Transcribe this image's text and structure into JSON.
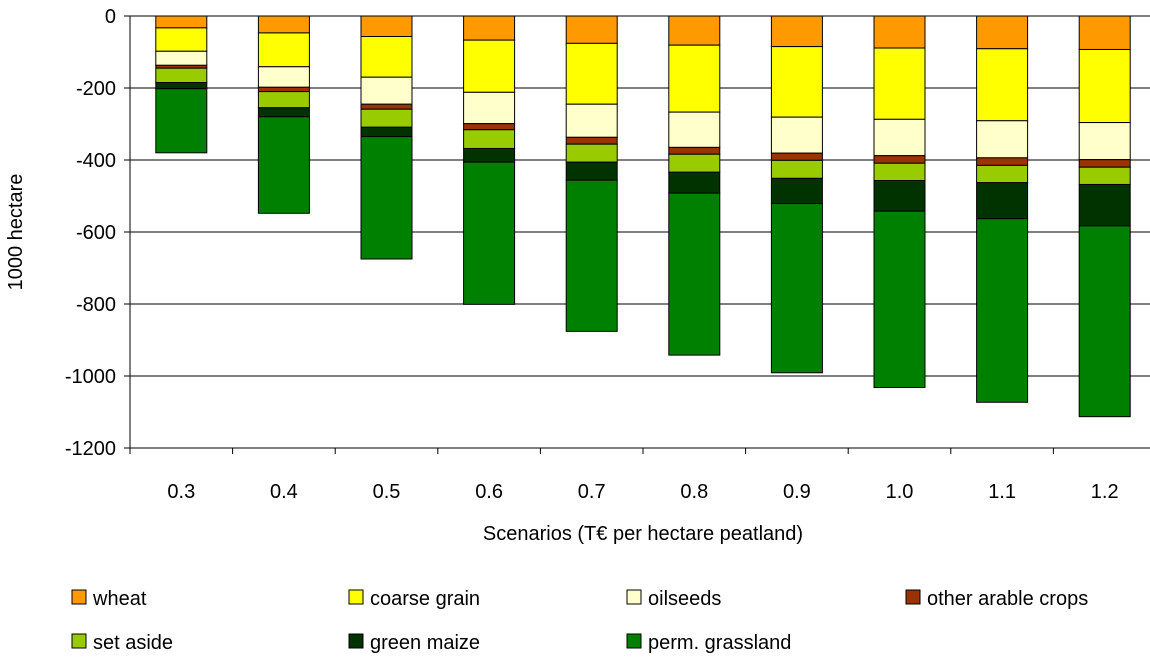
{
  "chart_data": {
    "type": "bar",
    "stacked": true,
    "title": "",
    "xlabel": "Scenarios (T€ per hectare peatland)",
    "ylabel": "1000 hectare",
    "ylim": [
      -1200,
      0
    ],
    "yticks": [
      "0",
      "-200",
      "-400",
      "-600",
      "-800",
      "-1000",
      "-1200"
    ],
    "ytick_values": [
      0,
      -200,
      -400,
      -600,
      -800,
      -1000,
      -1200
    ],
    "grid": true,
    "legend_position": "bottom",
    "categories": [
      "0.3",
      "0.4",
      "0.5",
      "0.6",
      "0.7",
      "0.8",
      "0.9",
      "1.0",
      "1.1",
      "1.2"
    ],
    "series": [
      {
        "name": "wheat",
        "color": "#FF9900",
        "values": [
          -33,
          -47,
          -57,
          -67,
          -76,
          -81,
          -85,
          -89,
          -91,
          -93
        ]
      },
      {
        "name": "coarse grain",
        "color": "#FFFF00",
        "values": [
          -65,
          -94,
          -113,
          -145,
          -169,
          -186,
          -196,
          -198,
          -200,
          -203
        ]
      },
      {
        "name": "oilseeds",
        "color": "#FFFFCC",
        "values": [
          -39,
          -57,
          -75,
          -87,
          -92,
          -98,
          -100,
          -101,
          -103,
          -103
        ]
      },
      {
        "name": "other arable crops",
        "color": "#993300",
        "values": [
          -8,
          -12,
          -14,
          -17,
          -19,
          -19,
          -20,
          -21,
          -21,
          -21
        ]
      },
      {
        "name": "set aside",
        "color": "#99CC00",
        "values": [
          -40,
          -45,
          -50,
          -52,
          -50,
          -50,
          -50,
          -48,
          -48,
          -48
        ]
      },
      {
        "name": "green maize",
        "color": "#003300",
        "values": [
          -17,
          -25,
          -26,
          -38,
          -50,
          -58,
          -70,
          -85,
          -100,
          -115
        ]
      },
      {
        "name": "perm. grassland",
        "color": "#008000",
        "values": [
          -178,
          -268,
          -340,
          -395,
          -420,
          -450,
          -470,
          -490,
          -510,
          -530
        ]
      }
    ]
  }
}
